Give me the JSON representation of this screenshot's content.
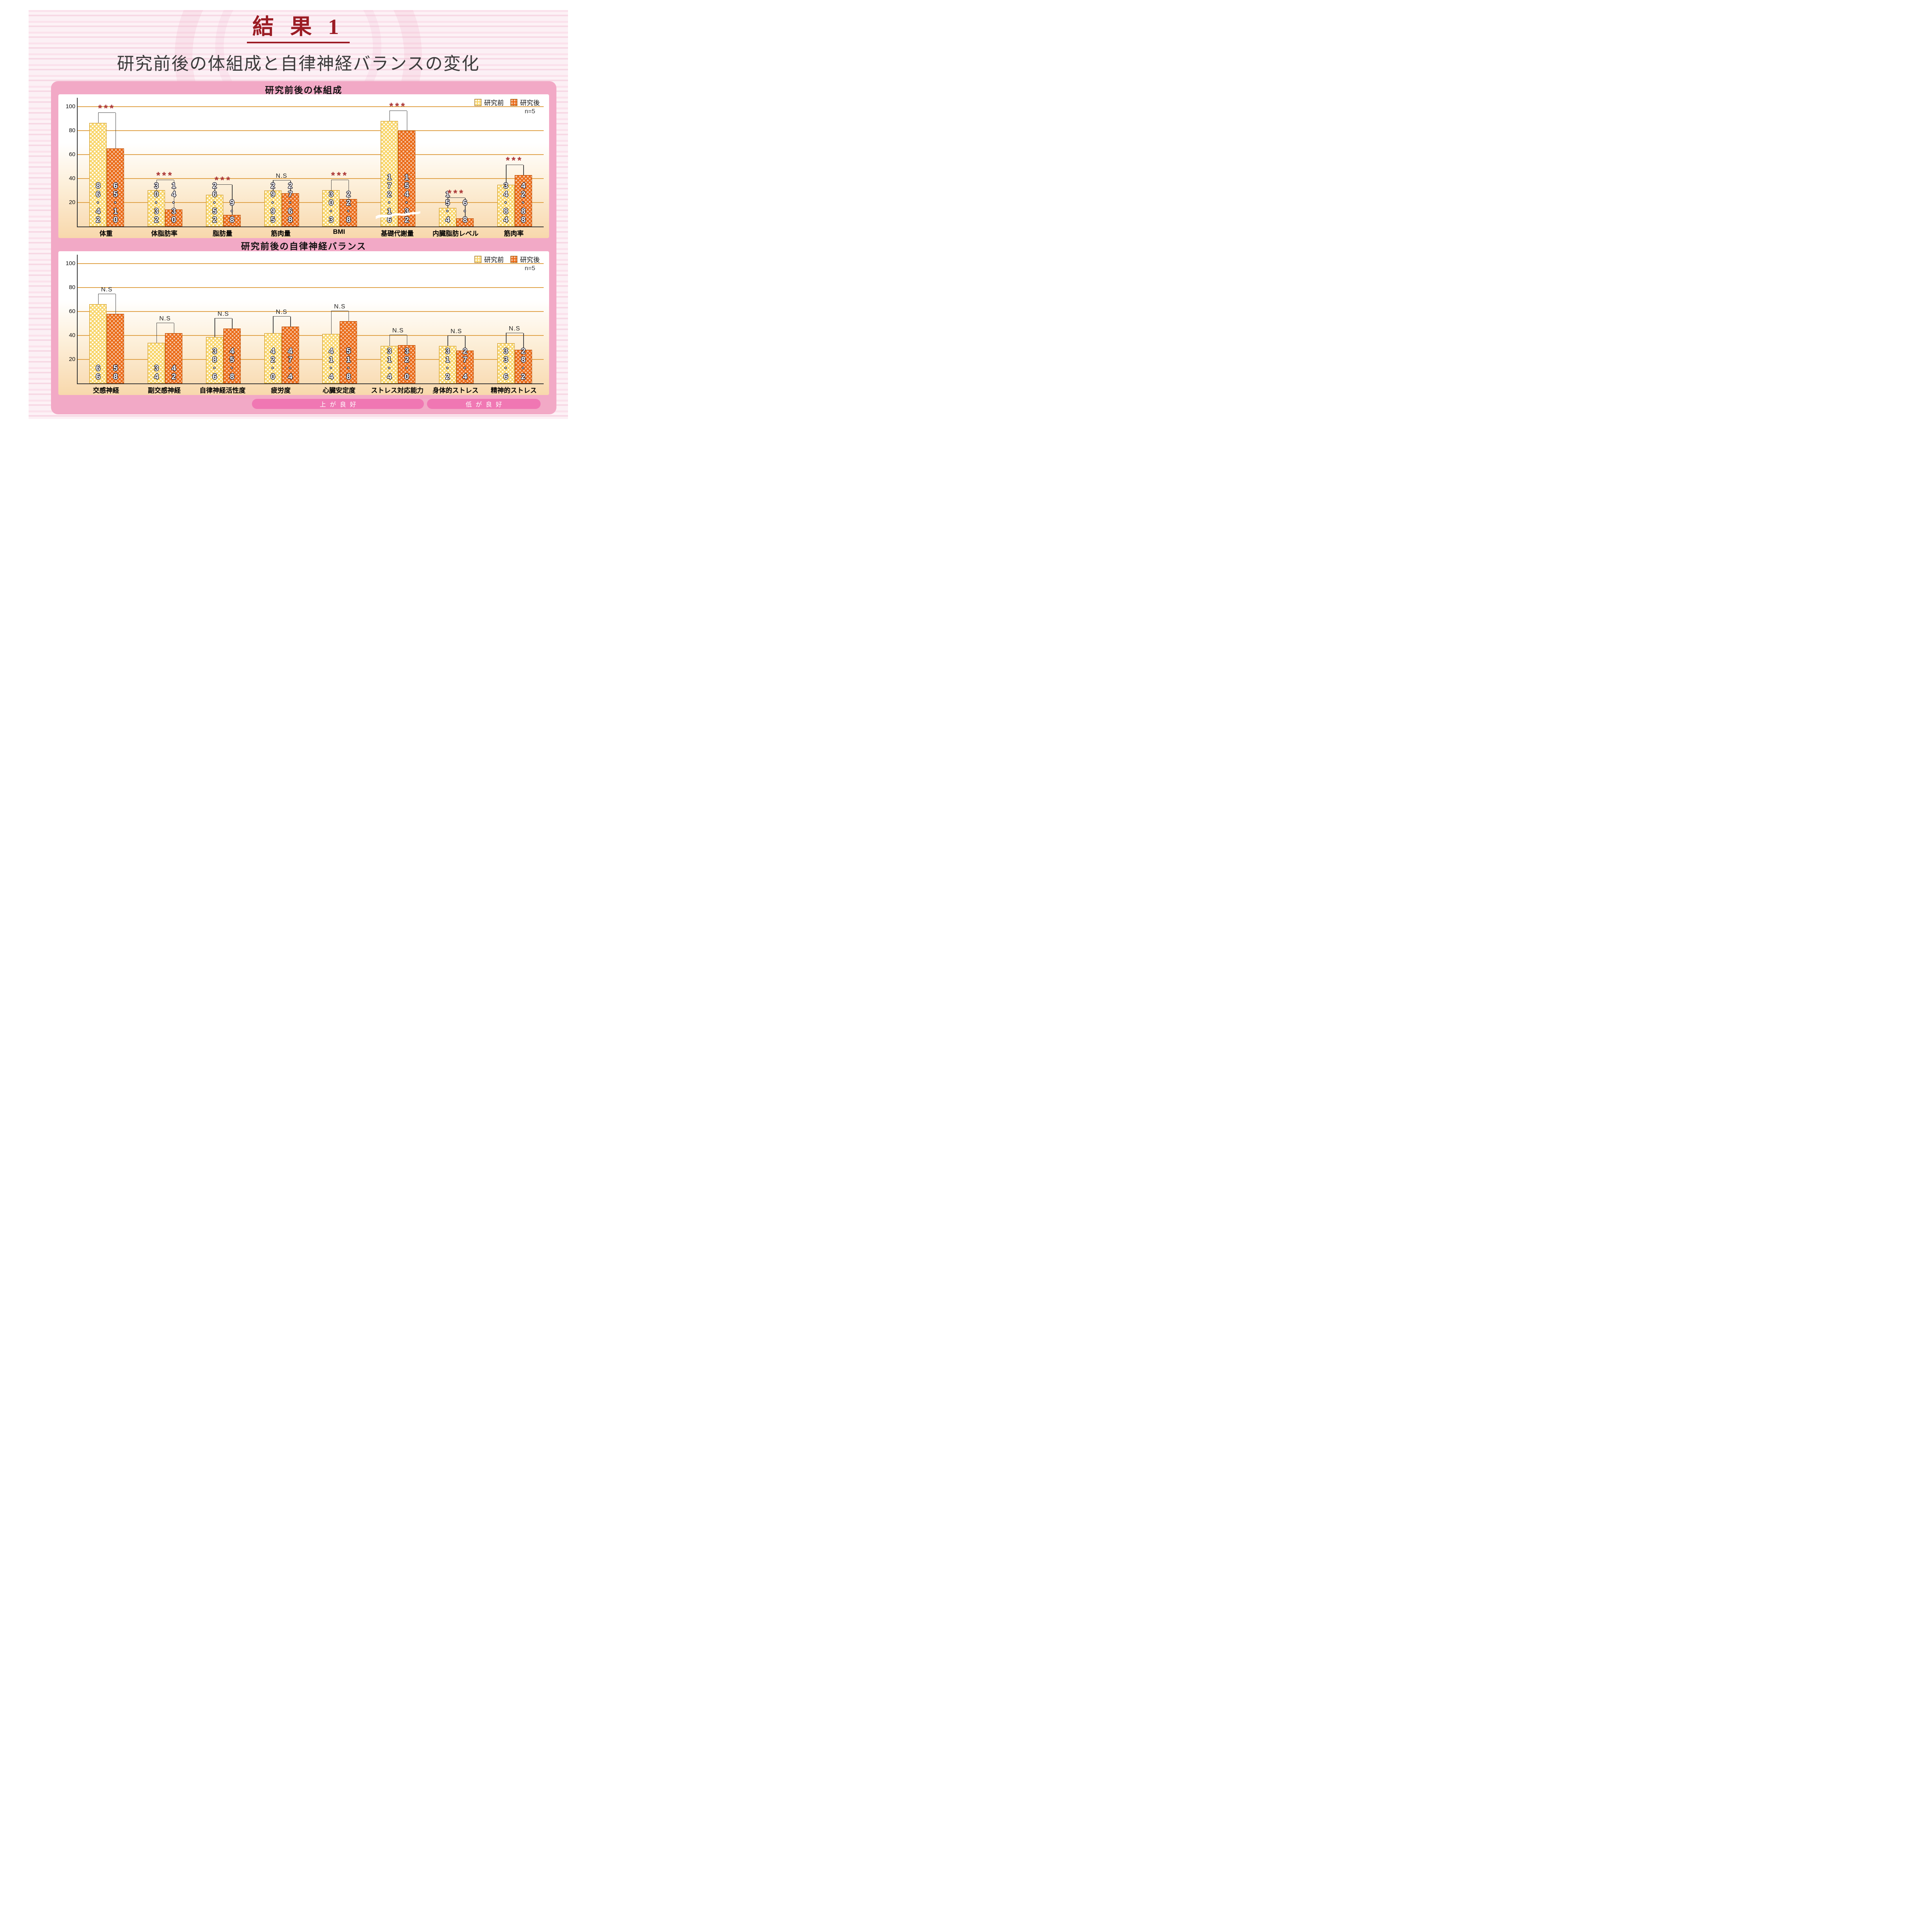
{
  "slide": {
    "title": "結 果 1",
    "subtitle": "研究前後の体組成と自律神経バランスの変化"
  },
  "legend": {
    "before": "研究前",
    "after": "研究後",
    "n": "n=5"
  },
  "footnotes": {
    "higher_better": "上が良好",
    "lower_better": "低が良好"
  },
  "colors": {
    "title_red": "#9b1c24",
    "panel_pink": "#f2a9c6",
    "pill_pink": "#f077b3",
    "before_bar": "#f8d56a",
    "after_bar": "#ea6a16",
    "grid_orange": "#dfa045",
    "significance_red": "#a93232"
  },
  "chart_data": [
    {
      "type": "bar",
      "title": "研究前後の体組成",
      "n": "n=5",
      "ylim": [
        0,
        100
      ],
      "yticks": [
        20,
        40,
        60,
        80,
        100
      ],
      "grid": true,
      "legend_position": "top-right",
      "categories": [
        "体重",
        "体脂肪率",
        "脂肪量",
        "筋肉量",
        "BMI",
        "基礎代謝量",
        "内臓脂肪レベル",
        "筋肉率"
      ],
      "series": [
        {
          "name": "研究前",
          "values": [
            86.42,
            30.32,
            26.52,
            29.95,
            30.3,
            172.16,
            15.4,
            34.84
          ]
        },
        {
          "name": "研究後",
          "values": [
            65.1,
            14.3,
            9.8,
            27.68,
            22.8,
            154.32,
            6.8,
            42.88
          ]
        }
      ],
      "value_labels": [
        [
          "86·42",
          "65·10"
        ],
        [
          "30·32",
          "14·30"
        ],
        [
          "26·52",
          "9·8"
        ],
        [
          "29·95",
          "27·68"
        ],
        [
          "30·3",
          "22·8"
        ],
        [
          "172·16",
          "154·32"
        ],
        [
          "15·4",
          "6·8"
        ],
        [
          "34·84",
          "42·88"
        ]
      ],
      "significance": [
        "***",
        "***",
        "***",
        "N.S",
        "***",
        "***",
        "***",
        "***"
      ],
      "axis_break": [
        false,
        false,
        false,
        false,
        false,
        true,
        false,
        false
      ],
      "display_heights": [
        [
          86.42,
          65.1
        ],
        [
          30.32,
          14.3
        ],
        [
          26.52,
          9.8
        ],
        [
          29.95,
          27.68
        ],
        [
          30.3,
          22.8
        ],
        [
          88,
          80
        ],
        [
          15.4,
          6.8
        ],
        [
          34.84,
          42.88
        ]
      ]
    },
    {
      "type": "bar",
      "title": "研究前後の自律神経バランス",
      "n": "n=5",
      "ylim": [
        0,
        100
      ],
      "yticks": [
        20,
        40,
        60,
        80,
        100
      ],
      "grid": true,
      "legend_position": "top-right",
      "categories": [
        "交感神経",
        "副交感神経",
        "自律神経活性度",
        "疲労度",
        "心臓安定度",
        "ストレス対応能力",
        "身体的ストレス",
        "精神的ストレス"
      ],
      "series": [
        {
          "name": "研究前",
          "values": [
            66,
            34,
            38.6,
            42.0,
            41.4,
            31.4,
            31.2,
            33.6
          ]
        },
        {
          "name": "研究後",
          "values": [
            58,
            42,
            45.8,
            47.4,
            51.8,
            32.0,
            27.4,
            28.2
          ]
        }
      ],
      "value_labels": [
        [
          "66",
          "58"
        ],
        [
          "34",
          "42"
        ],
        [
          "38·6",
          "45·8"
        ],
        [
          "42·0",
          "47·4"
        ],
        [
          "41·4",
          "51·8"
        ],
        [
          "31·4",
          "32·0"
        ],
        [
          "31·2",
          "27·4"
        ],
        [
          "33·6",
          "28·2"
        ]
      ],
      "significance": [
        "N.S",
        "N.S",
        "N.S",
        "N.S",
        "N.S",
        "N.S",
        "N.S",
        "N.S"
      ]
    }
  ]
}
